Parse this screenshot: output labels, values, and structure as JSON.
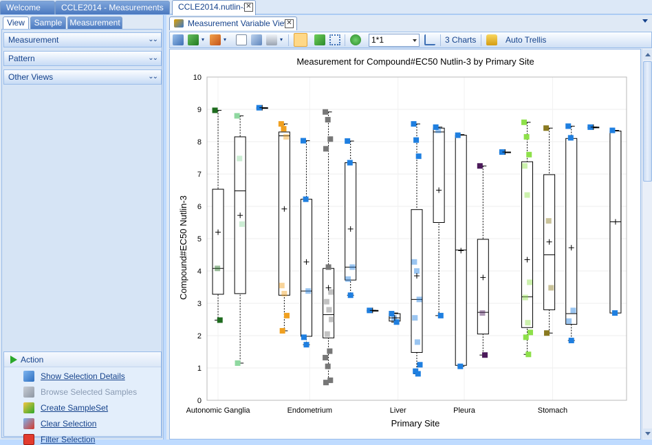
{
  "doc_tabs": [
    {
      "label": "Welcome",
      "state": "inactive"
    },
    {
      "label": "CCLE2014 - Measurements",
      "state": "inactive"
    },
    {
      "label": "CCLE2014.nutlin-3",
      "state": "active"
    }
  ],
  "left_panel": {
    "tabs": [
      "View",
      "Sample",
      "Measurement"
    ],
    "sections": [
      "Measurement",
      "Pattern",
      "Other Views"
    ],
    "action": {
      "title": "Action",
      "items": [
        {
          "label": "Show Selection Details",
          "enabled": true,
          "icon": "selection-details-icon"
        },
        {
          "label": "Browse Selected Samples",
          "enabled": false,
          "icon": "browse-samples-icon"
        },
        {
          "label": "Create SampleSet",
          "enabled": true,
          "icon": "create-sampleset-icon"
        },
        {
          "label": "Clear Selection",
          "enabled": true,
          "icon": "clear-selection-icon"
        },
        {
          "label": "Filter Selection",
          "enabled": true,
          "icon": "filter-selection-icon"
        }
      ]
    }
  },
  "view_tab": {
    "label": "Measurement Variable View"
  },
  "toolbar": {
    "zoom_value": "1*1",
    "charts_label": "3 Charts",
    "trellis_label": "Auto Trellis"
  },
  "chart_data": {
    "type": "box",
    "title": "Measurement for Compound#EC50 Nutlin-3 by Primary Site",
    "xlabel": "Primary Site",
    "ylabel": "Compound#EC50 Nutlin-3",
    "ylim": [
      0,
      10
    ],
    "yticks": [
      0,
      1,
      2,
      3,
      4,
      5,
      6,
      7,
      8,
      9,
      10
    ],
    "categories_labeled": [
      "Autonomic Ganglia",
      "Endometrium",
      "Liver",
      "Pleura",
      "Stomach"
    ],
    "grid": true,
    "boxes": [
      {
        "min": 2.48,
        "q1": 3.28,
        "median": 4.08,
        "q3": 6.53,
        "max": 8.97,
        "mean": 5.2,
        "color": "#1e6b1e",
        "points": [
          8.97,
          4.08,
          2.48
        ]
      },
      {
        "min": 1.15,
        "q1": 3.3,
        "median": 6.48,
        "q3": 8.15,
        "max": 8.8,
        "mean": 5.72,
        "color": "#8fd8a0",
        "points": [
          8.8,
          7.48,
          5.45,
          1.15
        ]
      },
      {
        "min": 9.05,
        "q1": 9.05,
        "median": 9.05,
        "q3": 9.05,
        "max": 9.05,
        "mean": 9.05,
        "color": "#1f7fe0",
        "points": [
          9.05
        ]
      },
      {
        "min": 2.15,
        "q1": 3.25,
        "median": 8.18,
        "q3": 8.3,
        "max": 8.55,
        "mean": 5.92,
        "color": "#f0a020",
        "points": [
          8.55,
          8.4,
          8.15,
          3.55,
          3.3,
          2.62,
          2.15
        ]
      },
      {
        "min": 1.72,
        "q1": 1.98,
        "median": 3.38,
        "q3": 6.22,
        "max": 8.03,
        "mean": 4.28,
        "color": "#1f7fe0",
        "points": [
          8.03,
          6.22,
          3.38,
          1.95,
          1.72
        ]
      },
      {
        "min": 0.55,
        "q1": 1.93,
        "median": 2.65,
        "q3": 4.08,
        "max": 8.92,
        "mean": 3.48,
        "color": "#777777",
        "points": [
          8.92,
          8.68,
          8.08,
          7.78,
          4.12,
          3.35,
          3.05,
          2.8,
          2.5,
          2.05,
          1.52,
          1.32,
          1.05,
          0.62,
          0.55
        ]
      },
      {
        "min": 3.25,
        "q1": 3.72,
        "median": 4.12,
        "q3": 7.35,
        "max": 8.02,
        "mean": 5.3,
        "color": "#1f7fe0",
        "points": [
          8.02,
          7.35,
          4.12,
          3.75,
          3.25
        ]
      },
      {
        "min": 2.78,
        "q1": 2.78,
        "median": 2.78,
        "q3": 2.78,
        "max": 2.78,
        "mean": 2.78,
        "color": "#1f7fe0",
        "points": [
          2.78
        ]
      },
      {
        "min": 2.42,
        "q1": 2.45,
        "median": 2.55,
        "q3": 2.68,
        "max": 2.7,
        "mean": 2.55,
        "color": "#1f7fe0",
        "points": [
          2.68,
          2.55,
          2.42
        ]
      },
      {
        "min": 0.82,
        "q1": 1.48,
        "median": 3.12,
        "q3": 5.9,
        "max": 8.55,
        "mean": 3.85,
        "color": "#1f7fe0",
        "points": [
          8.55,
          8.05,
          7.55,
          4.28,
          4.0,
          3.12,
          2.55,
          1.8,
          1.1,
          0.9,
          0.82
        ]
      },
      {
        "min": 2.62,
        "q1": 5.5,
        "median": 8.3,
        "q3": 8.42,
        "max": 8.45,
        "mean": 6.5,
        "color": "#1f7fe0",
        "points": [
          8.45,
          8.35,
          2.62
        ]
      },
      {
        "min": 1.05,
        "q1": 1.08,
        "median": 4.65,
        "q3": 8.2,
        "max": 8.22,
        "mean": 4.63,
        "color": "#1f7fe0",
        "points": [
          8.2,
          1.05
        ]
      },
      {
        "min": 1.4,
        "q1": 2.05,
        "median": 2.72,
        "q3": 4.98,
        "max": 7.25,
        "mean": 3.8,
        "color": "#4b1a5a",
        "points": [
          7.25,
          2.7,
          1.4
        ]
      },
      {
        "min": 7.68,
        "q1": 7.68,
        "median": 7.68,
        "q3": 7.68,
        "max": 7.68,
        "mean": 7.68,
        "color": "#1f7fe0",
        "points": [
          7.68
        ]
      },
      {
        "min": 1.42,
        "q1": 2.25,
        "median": 3.2,
        "q3": 7.38,
        "max": 8.6,
        "mean": 4.35,
        "color": "#8ee04a",
        "points": [
          8.6,
          8.15,
          7.6,
          7.25,
          6.35,
          3.65,
          3.18,
          2.4,
          2.1,
          1.95,
          1.42
        ]
      },
      {
        "min": 2.08,
        "q1": 2.8,
        "median": 4.5,
        "q3": 6.98,
        "max": 8.42,
        "mean": 4.9,
        "color": "#8a7a20",
        "points": [
          8.42,
          5.55,
          3.48,
          2.08
        ]
      },
      {
        "min": 1.85,
        "q1": 2.35,
        "median": 2.68,
        "q3": 8.1,
        "max": 8.48,
        "mean": 4.72,
        "color": "#1f7fe0",
        "points": [
          8.48,
          8.12,
          2.78,
          2.45,
          1.85
        ]
      },
      {
        "min": 8.45,
        "q1": 8.45,
        "median": 8.45,
        "q3": 8.45,
        "max": 8.45,
        "mean": 8.45,
        "color": "#1f7fe0",
        "points": [
          8.45
        ]
      },
      {
        "min": 2.7,
        "q1": 2.7,
        "median": 5.52,
        "q3": 8.33,
        "max": 8.35,
        "mean": 5.52,
        "color": "#1f7fe0",
        "points": [
          8.35,
          2.7
        ]
      }
    ]
  }
}
